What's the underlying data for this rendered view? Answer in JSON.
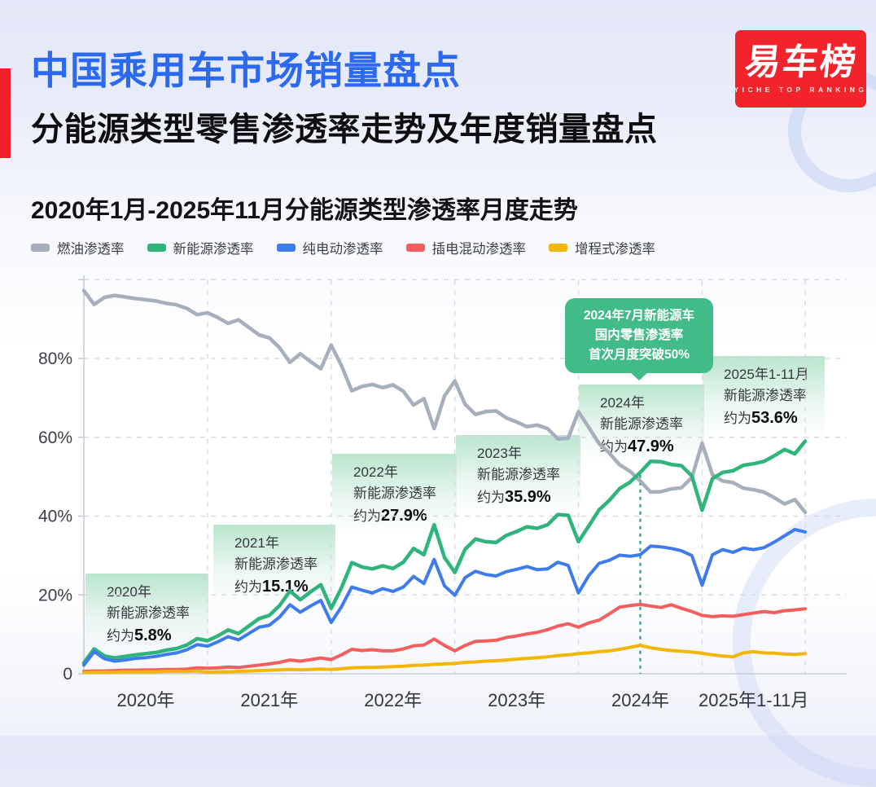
{
  "page": {
    "title": "中国乘用车市场销量盘点",
    "subtitle": "分能源类型零售渗透率走势及年度销量盘点"
  },
  "logo": {
    "text": "易车榜",
    "tagline": "YICHE TOP RANKING"
  },
  "chart": {
    "title": "2020年1月-2025年11月分能源类型渗透率月度走势"
  },
  "annotations": {
    "a2020": {
      "year": "2020年",
      "label": "新能源渗透率",
      "prefix": "约为",
      "value": "5.8%"
    },
    "a2021": {
      "year": "2021年",
      "label": "新能源渗透率",
      "prefix": "约为",
      "value": "15.1%"
    },
    "a2022": {
      "year": "2022年",
      "label": "新能源渗透率",
      "prefix": "约为",
      "value": "27.9%"
    },
    "a2023": {
      "year": "2023年",
      "label": "新能源渗透率",
      "prefix": "约为",
      "value": "35.9%"
    },
    "a2024": {
      "year": "2024年",
      "label": "新能源渗透率",
      "prefix": "约为",
      "value": "47.9%"
    },
    "a2025": {
      "year": "2025年1-11月",
      "label": "新能源渗透率",
      "prefix": "约为",
      "value": "53.6%"
    }
  },
  "callout": {
    "line1": "2024年7月新能源车",
    "line2": "国内零售渗透率",
    "line3": "首次月度突破50%"
  },
  "chart_data": {
    "type": "line",
    "title": "2020年1月-2025年11月分能源类型渗透率月度走势",
    "x_unit": "month",
    "x_start": "2020-01",
    "x_end": "2025-11",
    "points_per_series": 71,
    "ylim": [
      0,
      100
    ],
    "grid": "dashed",
    "legend_position": "top-left",
    "y_ticks": [
      {
        "value": 80,
        "label": "80%"
      },
      {
        "value": 60,
        "label": "60%"
      },
      {
        "value": 40,
        "label": "40%"
      },
      {
        "value": 20,
        "label": "20%"
      },
      {
        "value": 0,
        "label": "0"
      }
    ],
    "x_labels": [
      {
        "center": 6,
        "label": "2020年"
      },
      {
        "center": 18,
        "label": "2021年"
      },
      {
        "center": 30,
        "label": "2022年"
      },
      {
        "center": 42,
        "label": "2023年"
      },
      {
        "center": 54,
        "label": "2024年"
      },
      {
        "center": 65,
        "label": "2025年1-11月"
      }
    ],
    "event_line": {
      "month": "2024-07",
      "month_index": 54,
      "from_value": 50.5,
      "color": "#1ba57c",
      "note": "首次月度突破50%"
    },
    "series": [
      {
        "id": "fuel",
        "name": "燃油渗透率",
        "color": "#a7aebc",
        "width": 4.5,
        "values": [
          97.2,
          93.7,
          95.5,
          96.0,
          95.6,
          95.2,
          94.9,
          94.6,
          94.0,
          93.6,
          92.7,
          91.1,
          91.6,
          90.4,
          88.9,
          89.8,
          87.9,
          86.0,
          85.2,
          82.7,
          79.0,
          81.2,
          79.2,
          77.4,
          83.4,
          78.2,
          71.8,
          72.9,
          73.4,
          72.6,
          73.3,
          71.7,
          68.2,
          69.8,
          62.2,
          70.5,
          74.3,
          68.4,
          65.8,
          66.5,
          66.7,
          64.9,
          63.9,
          62.7,
          63.1,
          62.2,
          59.6,
          59.8,
          66.5,
          62.5,
          58.4,
          56.0,
          53.0,
          51.4,
          48.9,
          46.1,
          46.2,
          46.9,
          47.2,
          49.8,
          58.5,
          50.5,
          48.9,
          48.5,
          47.1,
          46.7,
          46.1,
          44.7,
          43.1,
          44.2,
          41.0
        ]
      },
      {
        "id": "nev",
        "name": "新能源渗透率",
        "color": "#2fb47c",
        "width": 4.5,
        "values": [
          2.8,
          6.3,
          4.5,
          4.0,
          4.4,
          4.8,
          5.1,
          5.4,
          6.0,
          6.4,
          7.3,
          8.9,
          8.4,
          9.6,
          11.1,
          10.2,
          12.1,
          14.0,
          14.8,
          17.3,
          21.0,
          18.8,
          20.8,
          22.6,
          16.6,
          21.8,
          28.2,
          27.1,
          26.6,
          27.4,
          26.7,
          28.3,
          31.8,
          30.2,
          37.8,
          29.5,
          25.7,
          31.6,
          34.2,
          33.5,
          33.3,
          35.1,
          36.1,
          37.3,
          36.9,
          37.8,
          40.4,
          40.2,
          33.5,
          37.5,
          41.6,
          44.0,
          47.0,
          48.6,
          51.1,
          53.9,
          53.8,
          53.1,
          52.8,
          50.2,
          41.5,
          49.5,
          51.1,
          51.5,
          52.9,
          53.3,
          53.9,
          55.3,
          56.9,
          55.8,
          59.0
        ]
      },
      {
        "id": "bev",
        "name": "纯电动渗透率",
        "color": "#3e7bed",
        "width": 4,
        "values": [
          2.2,
          5.6,
          3.8,
          3.2,
          3.5,
          3.9,
          4.1,
          4.4,
          4.9,
          5.3,
          6.1,
          7.4,
          7.0,
          8.1,
          9.4,
          8.6,
          10.2,
          11.8,
          12.3,
          14.4,
          17.5,
          15.6,
          17.2,
          18.6,
          13.0,
          17.0,
          22.0,
          21.2,
          20.5,
          21.6,
          20.9,
          22.0,
          24.7,
          22.9,
          29.0,
          22.3,
          19.9,
          24.4,
          26.0,
          25.2,
          24.8,
          25.9,
          26.5,
          27.2,
          26.4,
          26.6,
          28.3,
          27.5,
          20.5,
          24.9,
          28.0,
          28.8,
          30.1,
          29.8,
          30.2,
          32.4,
          32.2,
          31.8,
          31.2,
          30.0,
          22.5,
          30.2,
          31.5,
          30.8,
          31.9,
          31.5,
          32.0,
          33.4,
          35.0,
          36.6,
          36.0
        ]
      },
      {
        "id": "phev",
        "name": "插电混动渗透率",
        "color": "#f45e5e",
        "width": 4,
        "values": [
          0.6,
          0.7,
          0.7,
          0.8,
          0.9,
          0.9,
          1.0,
          1.0,
          1.1,
          1.1,
          1.2,
          1.5,
          1.4,
          1.5,
          1.7,
          1.6,
          1.9,
          2.2,
          2.5,
          2.9,
          3.5,
          3.2,
          3.6,
          4.0,
          3.6,
          4.8,
          6.2,
          5.9,
          6.1,
          5.8,
          5.8,
          6.3,
          7.1,
          7.3,
          8.8,
          7.2,
          5.8,
          7.2,
          8.2,
          8.3,
          8.5,
          9.2,
          9.6,
          10.1,
          10.5,
          11.2,
          12.1,
          12.7,
          11.8,
          12.9,
          13.6,
          15.2,
          16.9,
          17.3,
          17.6,
          17.2,
          16.8,
          17.5,
          16.6,
          15.8,
          14.8,
          14.5,
          14.7,
          14.6,
          15.0,
          15.4,
          15.8,
          15.5,
          16.0,
          16.2,
          16.5
        ]
      },
      {
        "id": "erev",
        "name": "增程式渗透率",
        "color": "#f2b607",
        "width": 4,
        "values": [
          0.3,
          0.4,
          0.4,
          0.4,
          0.5,
          0.5,
          0.5,
          0.5,
          0.6,
          0.6,
          0.6,
          0.7,
          0.4,
          0.5,
          0.5,
          0.6,
          0.7,
          0.8,
          0.9,
          1.0,
          1.1,
          1.0,
          1.1,
          1.2,
          1.1,
          1.3,
          1.5,
          1.6,
          1.6,
          1.7,
          1.8,
          1.9,
          2.1,
          2.2,
          2.4,
          2.5,
          2.6,
          2.9,
          3.0,
          3.2,
          3.3,
          3.5,
          3.7,
          3.9,
          4.1,
          4.3,
          4.6,
          4.8,
          5.1,
          5.3,
          5.6,
          5.8,
          6.2,
          6.7,
          7.2,
          6.6,
          6.2,
          5.9,
          5.7,
          5.5,
          5.2,
          4.8,
          4.5,
          4.3,
          5.3,
          5.6,
          5.3,
          5.2,
          5.0,
          4.9,
          5.1
        ]
      }
    ]
  }
}
